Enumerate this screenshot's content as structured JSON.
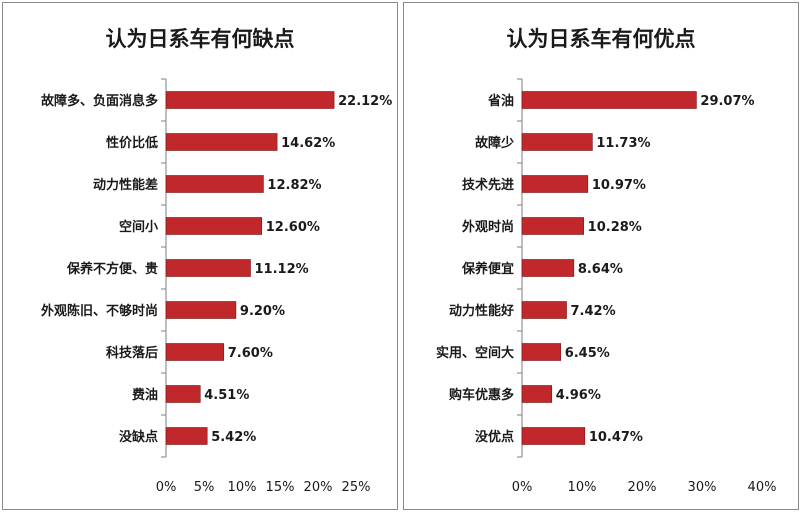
{
  "chart_data": [
    {
      "type": "bar",
      "orientation": "horizontal",
      "title": "认为日系车有何缺点",
      "categories": [
        "故障多、负面消息多",
        "性价比低",
        "动力性能差",
        "空间小",
        "保养不方便、贵",
        "外观陈旧、不够时尚",
        "科技落后",
        "费油",
        "没缺点"
      ],
      "values": [
        22.12,
        14.62,
        12.82,
        12.6,
        11.12,
        9.2,
        7.6,
        4.51,
        5.42
      ],
      "value_labels": [
        "22.12%",
        "14.62%",
        "12.82%",
        "12.60%",
        "11.12%",
        "9.20%",
        "7.60%",
        "4.51%",
        "5.42%"
      ],
      "xlim": [
        0,
        25
      ],
      "xticks": [
        "0%",
        "5%",
        "10%",
        "15%",
        "20%",
        "25%"
      ],
      "xlabel": "",
      "ylabel": "",
      "grid": false,
      "bar_color": "#c0282b"
    },
    {
      "type": "bar",
      "orientation": "horizontal",
      "title": "认为日系车有何优点",
      "categories": [
        "省油",
        "故障少",
        "技术先进",
        "外观时尚",
        "保养便宜",
        "动力性能好",
        "实用、空间大",
        "购车优惠多",
        "没优点"
      ],
      "values": [
        29.07,
        11.73,
        10.97,
        10.28,
        8.64,
        7.42,
        6.45,
        4.96,
        10.47
      ],
      "value_labels": [
        "29.07%",
        "11.73%",
        "10.97%",
        "10.28%",
        "8.64%",
        "7.42%",
        "6.45%",
        "4.96%",
        "10.47%"
      ],
      "xlim": [
        0,
        40
      ],
      "xticks": [
        "0%",
        "10%",
        "20%",
        "30%",
        "40%"
      ],
      "xlabel": "",
      "ylabel": "",
      "grid": false,
      "bar_color": "#c0282b"
    }
  ]
}
